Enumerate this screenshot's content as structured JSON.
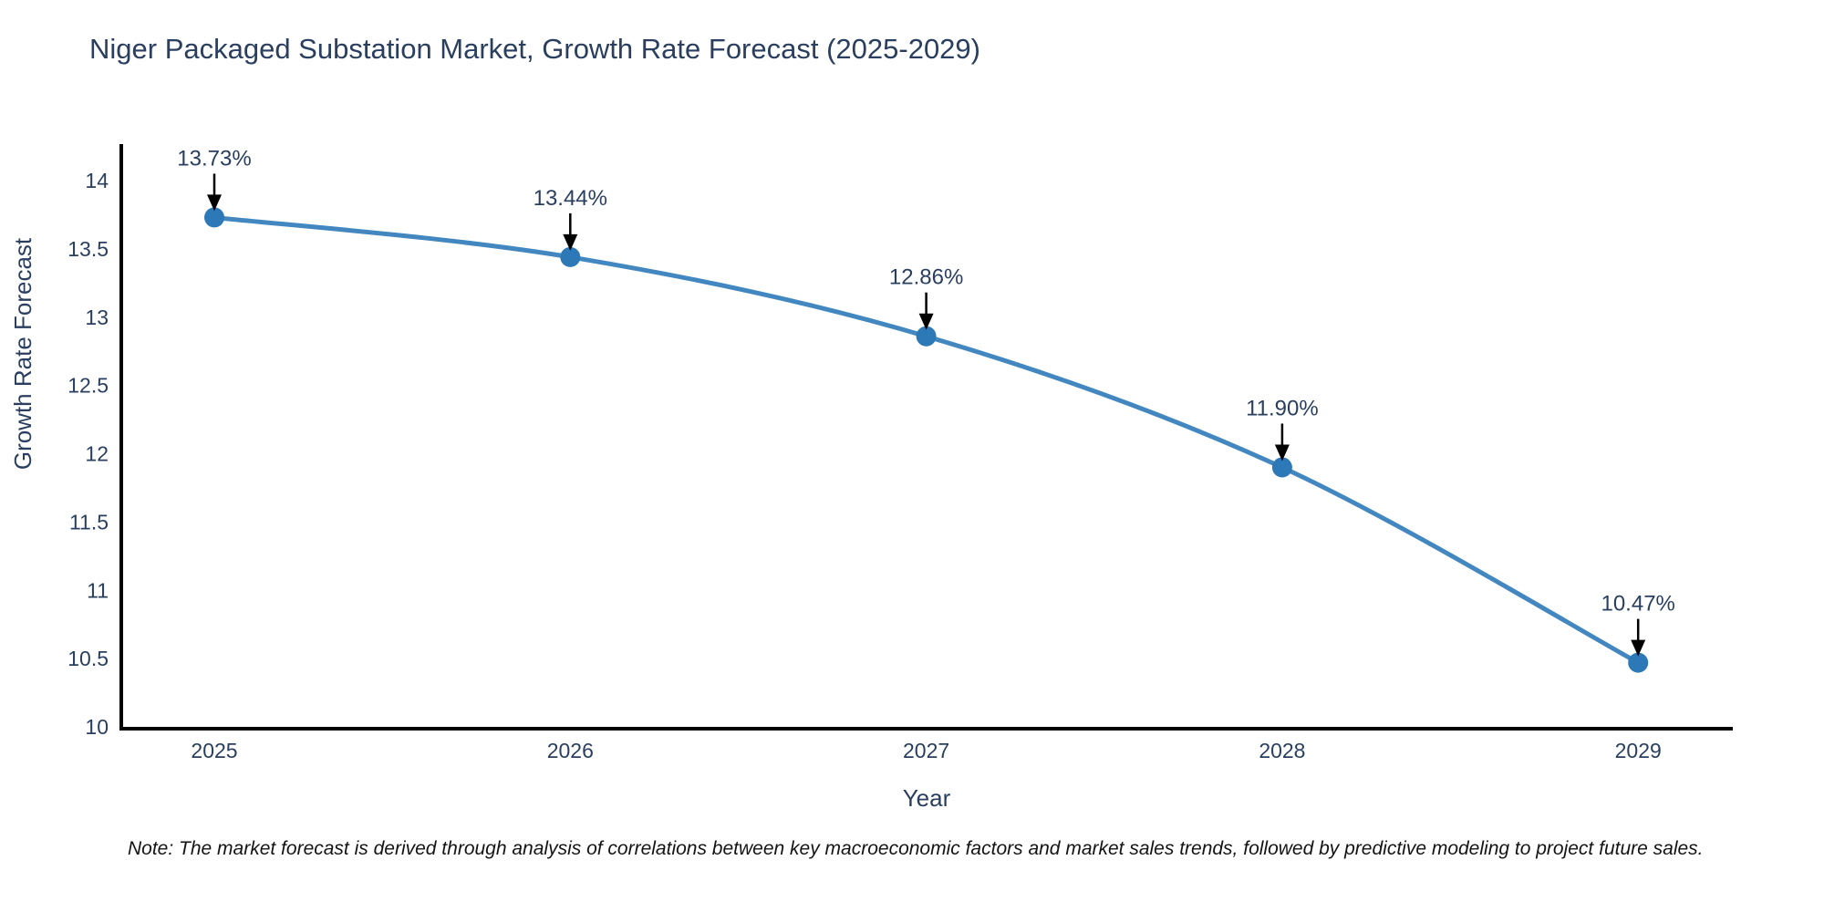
{
  "title": "Niger Packaged Substation Market, Growth Rate Forecast (2025-2029)",
  "note": "Note: The market forecast is derived through analysis of correlations between key macroeconomic factors and market sales trends, followed by predictive modeling to project future sales.",
  "chart_data": {
    "type": "line",
    "x": [
      "2025",
      "2026",
      "2027",
      "2028",
      "2029"
    ],
    "series": [
      {
        "name": "Growth Rate Forecast",
        "values": [
          13.73,
          13.44,
          12.86,
          11.9,
          10.47
        ],
        "point_labels": [
          "13.73%",
          "13.44%",
          "12.86%",
          "11.90%",
          "10.47%"
        ]
      }
    ],
    "xlabel": "Year",
    "ylabel": "Growth Rate Forecast",
    "ylim": [
      10,
      14.27
    ],
    "yticks": [
      10,
      10.5,
      11,
      11.5,
      12,
      12.5,
      13,
      13.5,
      14
    ],
    "ytick_labels": [
      "10",
      "10.5",
      "11",
      "11.5",
      "12",
      "12.5",
      "13",
      "13.5",
      "14"
    ],
    "grid": false,
    "legend_position": "none",
    "line_shape": "spline",
    "colors": {
      "line": "#4387c0",
      "marker": "#2d79b7",
      "axis_line": "#000000",
      "tick_text": "#2a3f5f",
      "title_text": "#2a3f5f",
      "annotation_text": "#2a3f5f",
      "annotation_arrow": "#000000"
    }
  }
}
